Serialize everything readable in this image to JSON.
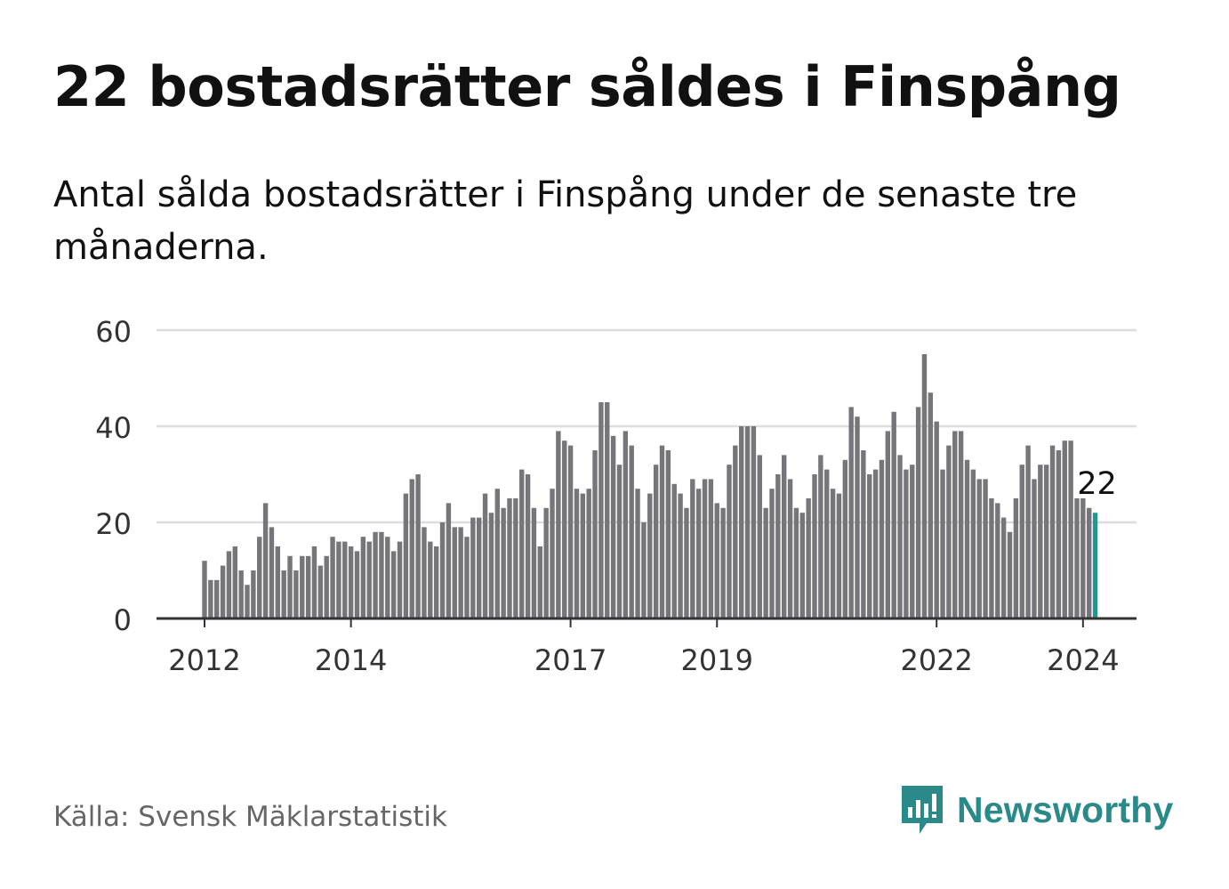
{
  "header": {
    "title": "22 bostadsrätter såldes i Finspång",
    "subtitle": "Antal sålda bostadsrätter i Finspång under de senaste tre månaderna."
  },
  "footer": {
    "source": "Källa: Svensk Mäklarstatistik",
    "brand": "Newsworthy",
    "brand_icon": "newsworthy-logo-icon"
  },
  "colors": {
    "bar": "#76757a",
    "highlight": "#1e9b8f",
    "grid": "#dddddd",
    "axis": "#333333",
    "brand": "#2a8a8a"
  },
  "chart_data": {
    "type": "bar",
    "title": "Antal sålda bostadsrätter i Finspång",
    "xlabel": "",
    "ylabel": "",
    "ylim": [
      0,
      60
    ],
    "yticks": [
      0,
      20,
      40,
      60
    ],
    "x_start": "2012-01",
    "xticks": [
      {
        "label": "2012",
        "index": 0
      },
      {
        "label": "2014",
        "index": 24
      },
      {
        "label": "2017",
        "index": 60
      },
      {
        "label": "2019",
        "index": 84
      },
      {
        "label": "2022",
        "index": 120
      },
      {
        "label": "2024",
        "index": 144
      }
    ],
    "values": [
      12,
      8,
      8,
      11,
      14,
      15,
      10,
      7,
      10,
      17,
      24,
      19,
      15,
      10,
      13,
      10,
      13,
      13,
      15,
      11,
      13,
      17,
      16,
      16,
      15,
      14,
      17,
      16,
      18,
      18,
      17,
      14,
      16,
      26,
      29,
      30,
      19,
      16,
      15,
      20,
      24,
      19,
      19,
      17,
      21,
      21,
      26,
      22,
      27,
      23,
      25,
      25,
      31,
      30,
      23,
      15,
      23,
      27,
      39,
      37,
      36,
      27,
      26,
      27,
      35,
      45,
      45,
      38,
      32,
      39,
      36,
      27,
      20,
      26,
      32,
      36,
      35,
      28,
      26,
      23,
      29,
      27,
      29,
      29,
      24,
      23,
      32,
      36,
      40,
      40,
      40,
      34,
      23,
      27,
      30,
      34,
      29,
      23,
      22,
      25,
      30,
      34,
      31,
      27,
      26,
      33,
      44,
      42,
      35,
      30,
      31,
      33,
      39,
      43,
      34,
      31,
      32,
      44,
      55,
      47,
      41,
      31,
      36,
      39,
      39,
      33,
      31,
      29,
      29,
      25,
      24,
      21,
      18,
      25,
      32,
      36,
      29,
      32,
      32,
      36,
      35,
      37,
      37,
      25,
      25,
      23,
      22
    ],
    "highlight_index": 146,
    "annotation": {
      "label": "22",
      "index": 146
    }
  }
}
